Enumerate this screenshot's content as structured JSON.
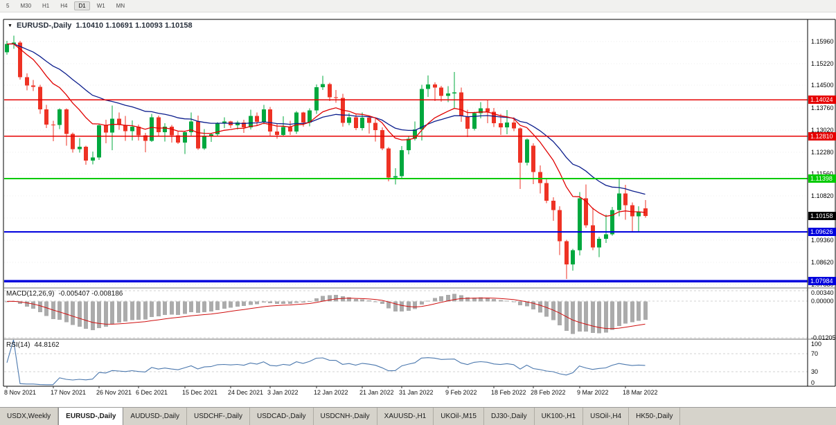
{
  "toolbar": {
    "items": [
      "5",
      "M30",
      "H1",
      "H4",
      "D1",
      "W1",
      "MN"
    ],
    "active": "D1"
  },
  "icons": {
    "dropdown": "▼"
  },
  "chart_data": {
    "type": "candlestick",
    "symbol_period": "EURUSD-,Daily",
    "ohlc_text": "1.10410 1.10691 1.10093 1.10158",
    "ohlc_current": {
      "open": "1.10410",
      "high": "1.10691",
      "low": "1.10093",
      "close": "1.10158"
    },
    "colors": {
      "bull": "#00a83e",
      "bear": "#ee3224",
      "background": "#ffffff"
    },
    "price_axis": {
      "max": 1.167,
      "min": 1.0776,
      "ticks": [
        "1.15960",
        "1.15220",
        "1.14500",
        "1.13760",
        "1.13020",
        "1.12280",
        "1.11560",
        "1.10820",
        "1.10080",
        "1.09360",
        "1.08620",
        "1.07880"
      ]
    },
    "levels": [
      {
        "value": 1.14024,
        "label": "1.14024",
        "color": "#e60000",
        "width": 1.4
      },
      {
        "value": 1.1281,
        "label": "1.12810",
        "color": "#e60000",
        "width": 1.4
      },
      {
        "value": 1.11398,
        "label": "1.11398",
        "color": "#00ca00",
        "width": 2
      },
      {
        "value": 1.09626,
        "label": "1.09626",
        "color": "#0000dd",
        "width": 2
      },
      {
        "value": 1.07984,
        "label": "1.07984",
        "color": "#0000dd",
        "width": 3.2
      }
    ],
    "current_price": {
      "value": 1.10158,
      "label": "1.10158",
      "color": "#000000"
    },
    "moving_averages": [
      {
        "name": "ma-fast",
        "period": 12,
        "color": "#e00000"
      },
      {
        "name": "ma-slow",
        "period": 26,
        "color": "#0b1d8c"
      }
    ],
    "macd": {
      "title": "MACD(12,26,9)",
      "values": "-0.005407 -0.008186",
      "params": [
        12,
        26,
        9
      ],
      "range": [
        -0.0125,
        0.0042
      ],
      "axis_ticks": [
        {
          "v": 0.0034,
          "t": "0.00340"
        },
        {
          "v": 0,
          "t": "0.00000"
        },
        {
          "v": -0.01205,
          "t": "-0.01205"
        }
      ],
      "histogram_color": "#ababab",
      "signal_color": "#cf0e0e"
    },
    "rsi": {
      "title": "RSI(14)",
      "value": "44.8162",
      "period": 14,
      "levels": [
        70,
        30
      ],
      "axis_ticks": [
        100,
        70,
        30,
        0
      ],
      "color": "#4a77ad"
    },
    "x_labels": [
      {
        "i": 0,
        "t": "8 Nov 2021"
      },
      {
        "i": 7,
        "t": "17 Nov 2021"
      },
      {
        "i": 14,
        "t": "26 Nov 2021"
      },
      {
        "i": 20,
        "t": "6 Dec 2021"
      },
      {
        "i": 27,
        "t": "15 Dec 2021"
      },
      {
        "i": 34,
        "t": "24 Dec 2021"
      },
      {
        "i": 40,
        "t": "3 Jan 2022"
      },
      {
        "i": 47,
        "t": "12 Jan 2022"
      },
      {
        "i": 54,
        "t": "21 Jan 2022"
      },
      {
        "i": 60,
        "t": "31 Jan 2022"
      },
      {
        "i": 67,
        "t": "9 Feb 2022"
      },
      {
        "i": 74,
        "t": "18 Feb 2022"
      },
      {
        "i": 80,
        "t": "28 Feb 2022"
      },
      {
        "i": 87,
        "t": "9 Mar 2022"
      },
      {
        "i": 94,
        "t": "18 Mar 2022"
      }
    ],
    "candles": [
      [
        1.156,
        1.1598,
        1.1552,
        1.1588
      ],
      [
        1.1588,
        1.1616,
        1.1572,
        1.1593
      ],
      [
        1.1593,
        1.1598,
        1.147,
        1.1478
      ],
      [
        1.1478,
        1.149,
        1.1434,
        1.145
      ],
      [
        1.145,
        1.1468,
        1.1432,
        1.1445
      ],
      [
        1.1445,
        1.1452,
        1.1356,
        1.137
      ],
      [
        1.137,
        1.1386,
        1.1308,
        1.132
      ],
      [
        1.132,
        1.1332,
        1.1264,
        1.1319
      ],
      [
        1.1319,
        1.1374,
        1.1305,
        1.137
      ],
      [
        1.137,
        1.1374,
        1.125,
        1.1289
      ],
      [
        1.1289,
        1.1293,
        1.1226,
        1.1238
      ],
      [
        1.1238,
        1.1275,
        1.1226,
        1.1246
      ],
      [
        1.1246,
        1.125,
        1.1186,
        1.12
      ],
      [
        1.12,
        1.123,
        1.1187,
        1.121
      ],
      [
        1.121,
        1.1322,
        1.1202,
        1.1317
      ],
      [
        1.1317,
        1.1336,
        1.1258,
        1.1293
      ],
      [
        1.1293,
        1.1383,
        1.1235,
        1.1339
      ],
      [
        1.1339,
        1.136,
        1.1302,
        1.1319
      ],
      [
        1.1319,
        1.1348,
        1.1266,
        1.1298
      ],
      [
        1.1298,
        1.1334,
        1.1267,
        1.1313
      ],
      [
        1.1313,
        1.132,
        1.1267,
        1.1284
      ],
      [
        1.1284,
        1.1292,
        1.1228,
        1.1266
      ],
      [
        1.1266,
        1.1355,
        1.1262,
        1.1344
      ],
      [
        1.1344,
        1.135,
        1.128,
        1.1294
      ],
      [
        1.1294,
        1.1324,
        1.1263,
        1.1313
      ],
      [
        1.1313,
        1.1319,
        1.126,
        1.1284
      ],
      [
        1.1284,
        1.1297,
        1.1255,
        1.126
      ],
      [
        1.126,
        1.1298,
        1.1222,
        1.1294
      ],
      [
        1.1294,
        1.136,
        1.1281,
        1.133
      ],
      [
        1.133,
        1.135,
        1.1236,
        1.124
      ],
      [
        1.124,
        1.1305,
        1.1236,
        1.128
      ],
      [
        1.128,
        1.1292,
        1.1262,
        1.1287
      ],
      [
        1.1287,
        1.1328,
        1.128,
        1.1324
      ],
      [
        1.1324,
        1.1344,
        1.1308,
        1.133
      ],
      [
        1.133,
        1.1333,
        1.1308,
        1.1318
      ],
      [
        1.1318,
        1.1333,
        1.1304,
        1.1327
      ],
      [
        1.1327,
        1.1336,
        1.1292,
        1.131
      ],
      [
        1.131,
        1.1369,
        1.1304,
        1.1349
      ],
      [
        1.1349,
        1.136,
        1.1316,
        1.1329
      ],
      [
        1.1329,
        1.1386,
        1.1321,
        1.137
      ],
      [
        1.137,
        1.1379,
        1.1279,
        1.1297
      ],
      [
        1.1297,
        1.1324,
        1.1272,
        1.1285
      ],
      [
        1.1285,
        1.1347,
        1.1281,
        1.1312
      ],
      [
        1.1312,
        1.1332,
        1.1285,
        1.1297
      ],
      [
        1.1297,
        1.1365,
        1.1289,
        1.136
      ],
      [
        1.136,
        1.1362,
        1.1313,
        1.1327
      ],
      [
        1.1327,
        1.1374,
        1.1314,
        1.1367
      ],
      [
        1.1367,
        1.1453,
        1.1356,
        1.1444
      ],
      [
        1.1444,
        1.1482,
        1.1435,
        1.1454
      ],
      [
        1.1454,
        1.1459,
        1.1398,
        1.1411
      ],
      [
        1.1411,
        1.1435,
        1.1392,
        1.1408
      ],
      [
        1.1408,
        1.1422,
        1.1313,
        1.1326
      ],
      [
        1.1326,
        1.1358,
        1.1318,
        1.1344
      ],
      [
        1.1344,
        1.1357,
        1.1301,
        1.1308
      ],
      [
        1.1308,
        1.136,
        1.13,
        1.1343
      ],
      [
        1.1343,
        1.1349,
        1.129,
        1.1325
      ],
      [
        1.1325,
        1.134,
        1.1263,
        1.1301
      ],
      [
        1.1301,
        1.1311,
        1.1235,
        1.124
      ],
      [
        1.124,
        1.1245,
        1.1131,
        1.1144
      ],
      [
        1.1144,
        1.1175,
        1.1121,
        1.1148
      ],
      [
        1.1148,
        1.1248,
        1.1141,
        1.1235
      ],
      [
        1.1235,
        1.1279,
        1.1221,
        1.1273
      ],
      [
        1.1273,
        1.133,
        1.1267,
        1.1304
      ],
      [
        1.1304,
        1.1452,
        1.1267,
        1.1438
      ],
      [
        1.1438,
        1.1483,
        1.1412,
        1.1453
      ],
      [
        1.1453,
        1.146,
        1.1398,
        1.1443
      ],
      [
        1.1443,
        1.1449,
        1.1396,
        1.1415
      ],
      [
        1.1415,
        1.1448,
        1.1395,
        1.1424
      ],
      [
        1.1424,
        1.1495,
        1.1374,
        1.1427
      ],
      [
        1.1427,
        1.1443,
        1.1329,
        1.1347
      ],
      [
        1.1347,
        1.1369,
        1.1278,
        1.1306
      ],
      [
        1.1306,
        1.1362,
        1.13,
        1.1358
      ],
      [
        1.1358,
        1.1395,
        1.134,
        1.1374
      ],
      [
        1.1374,
        1.1402,
        1.1324,
        1.1362
      ],
      [
        1.1362,
        1.1375,
        1.1312,
        1.1324
      ],
      [
        1.1324,
        1.1355,
        1.1285,
        1.1311
      ],
      [
        1.1311,
        1.1368,
        1.1287,
        1.1327
      ],
      [
        1.1327,
        1.1344,
        1.1298,
        1.1307
      ],
      [
        1.1307,
        1.1311,
        1.1106,
        1.1193
      ],
      [
        1.1193,
        1.1274,
        1.1184,
        1.127
      ],
      [
        1.125,
        1.1258,
        1.1122,
        1.1162
      ],
      [
        1.1162,
        1.1184,
        1.109,
        1.1125
      ],
      [
        1.1125,
        1.114,
        1.1058,
        1.1066
      ],
      [
        1.1066,
        1.1078,
        1.1,
        1.1035
      ],
      [
        1.1035,
        1.1048,
        1.0886,
        1.0932
      ],
      [
        1.0932,
        1.0936,
        1.0806,
        1.0854
      ],
      [
        1.0854,
        1.0906,
        1.0834,
        1.0901
      ],
      [
        1.0901,
        1.1095,
        1.0884,
        1.1074
      ],
      [
        1.1074,
        1.1121,
        1.0976,
        1.0985
      ],
      [
        1.0985,
        1.1043,
        1.0901,
        1.0911
      ],
      [
        1.0911,
        1.0947,
        1.0878,
        1.094
      ],
      [
        1.094,
        1.102,
        1.0926,
        1.0955
      ],
      [
        1.0955,
        1.1046,
        1.095,
        1.1035
      ],
      [
        1.1035,
        1.1138,
        1.1015,
        1.1091
      ],
      [
        1.1091,
        1.1119,
        1.1003,
        1.1051
      ],
      [
        1.1051,
        1.1061,
        1.0961,
        1.1014
      ],
      [
        1.1014,
        1.1048,
        1.0963,
        1.1028
      ],
      [
        1.1041,
        1.10691,
        1.10093,
        1.10158
      ]
    ]
  },
  "tabs": {
    "items": [
      "USDX,Weekly",
      "EURUSD-,Daily",
      "AUDUSD-,Daily",
      "USDCHF-,Daily",
      "USDCAD-,Daily",
      "USDCNH-,Daily",
      "XAUUSD-,H1",
      "UKOil-,M15",
      "DJ30-,Daily",
      "UK100-,H1",
      "USOil-,H4",
      "HK50-,Daily"
    ],
    "active_index": 1
  }
}
